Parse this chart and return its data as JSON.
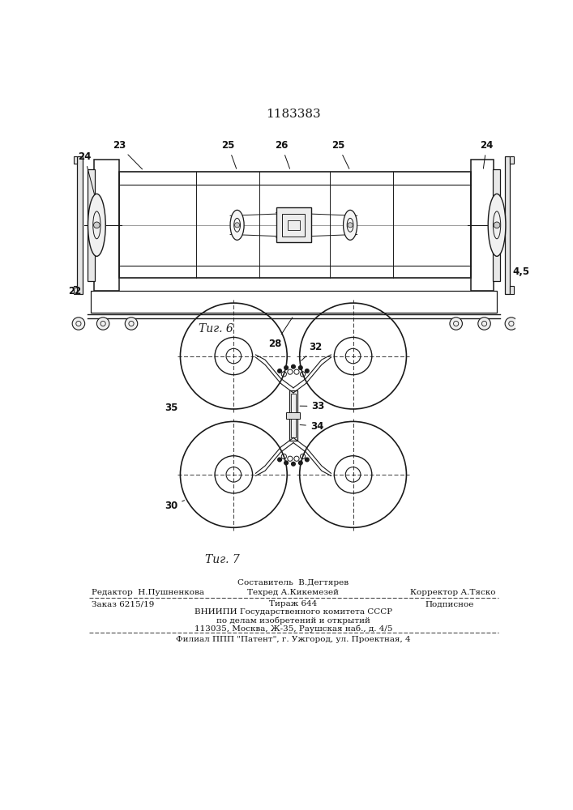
{
  "patent_number": "1183383",
  "fig6_label": "Τиг. 6",
  "fig7_label": "Τиг. 7",
  "bg_color": "#ffffff",
  "line_color": "#000000",
  "composer_line": "Составитель  В.Дегтярев",
  "editor_left": "Редактор  Н.Пушненкова",
  "editor_mid": "Техред А.Кикемезей",
  "editor_right": "Корректор А.Тяско",
  "order_left": "Заказ 6215/19",
  "order_mid": "Тираж 644",
  "order_right": "Подписное",
  "vnipi_line1": "ВНИИПИ Государственного комитета СССР",
  "vnipi_line2": "по делам изобретений и открытий",
  "vnipi_line3": "113035, Москва, Ж-35, Раушская наб., д. 4/5",
  "filial_line": "Филиал ППП \"Патент\", г. Ужгород, ул. Проектная, 4"
}
